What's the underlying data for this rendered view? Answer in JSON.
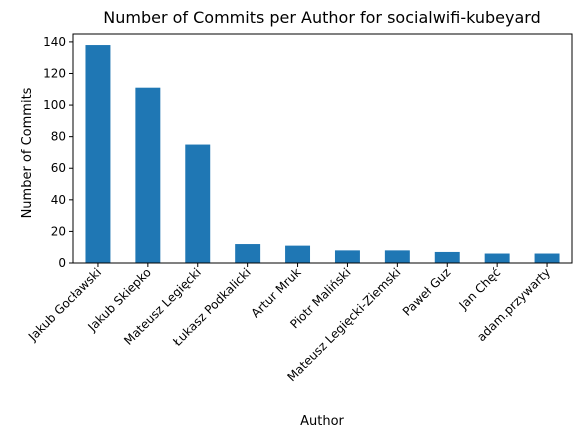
{
  "chart_data": {
    "type": "bar",
    "title": "Number of Commits per Author for socialwifi-kubeyard",
    "xlabel": "Author",
    "ylabel": "Number of Commits",
    "categories": [
      "Jakub Gocławski",
      "Jakub Skiepko",
      "Mateusz Legięcki",
      "Łukasz Podkalicki",
      "Artur Mruk",
      "Piotr Maliński",
      "Mateusz Legięcki-Ziemski",
      "Paweł Guz",
      "Jan Chęć",
      "adam.przywarty"
    ],
    "values": [
      138,
      111,
      75,
      12,
      11,
      8,
      8,
      7,
      6,
      6
    ],
    "ylim": [
      0,
      145
    ],
    "yticks": [
      0,
      20,
      40,
      60,
      80,
      100,
      120,
      140
    ],
    "bar_color": "#1f77b4",
    "grid": false,
    "legend": "none"
  }
}
